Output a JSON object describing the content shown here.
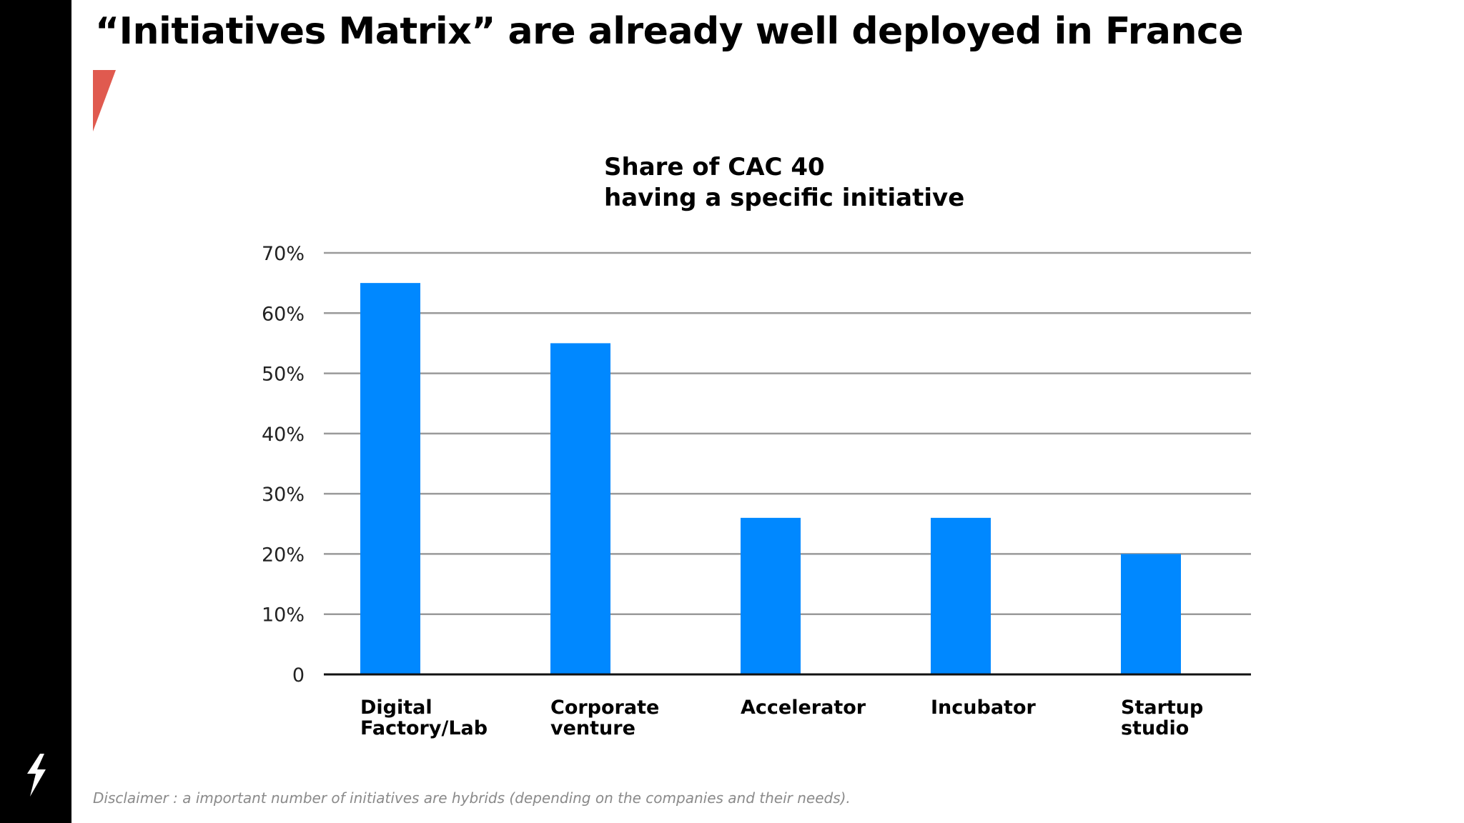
{
  "slide": {
    "title": "“Initiatives Matrix” are already well deployed in France",
    "disclaimer": "Disclaimer : a important number of initiatives are hybrids (depending on the companies and their needs)."
  },
  "colors": {
    "sidebar": "#000000",
    "accent": "#e05a4f",
    "bar": "#0088ff",
    "gridline": "#9a9a9a",
    "baseline": "#111111",
    "disclaimer": "#8a8a8a"
  },
  "icons": {
    "logo": "lightning-bolt-icon",
    "accent": "red-pennant-shape"
  },
  "chart_data": {
    "type": "bar",
    "title_lines": [
      "Share of CAC 40",
      "having a specific initiative"
    ],
    "categories": [
      [
        "Digital",
        "Factory/Lab"
      ],
      [
        "Corporate",
        "venture"
      ],
      [
        "Accelerator"
      ],
      [
        "Incubator"
      ],
      [
        "Startup",
        "studio"
      ]
    ],
    "values": [
      65,
      55,
      26,
      26,
      20
    ],
    "unit": "%",
    "ylim": [
      0,
      70
    ],
    "yticks": [
      0,
      10,
      20,
      30,
      40,
      50,
      60,
      70
    ],
    "ytick_labels": [
      "0",
      "10%",
      "20%",
      "30%",
      "40%",
      "50%",
      "60%",
      "70%"
    ],
    "grid": true,
    "legend": "none"
  }
}
